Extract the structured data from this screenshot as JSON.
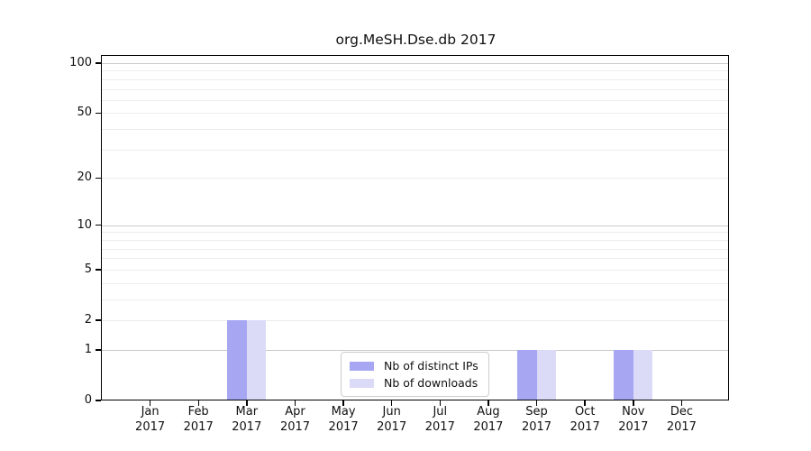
{
  "figure": {
    "title": "org.MeSH.Dse.db 2017"
  },
  "chart_data": {
    "type": "bar",
    "title": "org.MeSH.Dse.db 2017",
    "x_categories": [
      "Jan",
      "Feb",
      "Mar",
      "Apr",
      "May",
      "Jun",
      "Jul",
      "Aug",
      "Sep",
      "Oct",
      "Nov",
      "Dec"
    ],
    "x_year": "2017",
    "series": [
      {
        "name": "Nb of distinct IPs",
        "color": "#a6a6f2",
        "values": [
          0,
          0,
          2,
          0,
          0,
          0,
          0,
          0,
          1,
          0,
          1,
          0
        ]
      },
      {
        "name": "Nb of downloads",
        "color": "#dbdbf8",
        "values": [
          0,
          0,
          2,
          0,
          0,
          0,
          0,
          0,
          1,
          0,
          1,
          0
        ]
      }
    ],
    "yscale": "log1p",
    "ylim": [
      0,
      110
    ],
    "ytick_values": [
      0,
      1,
      2,
      5,
      10,
      20,
      50,
      100
    ],
    "ytick_labels": [
      "0",
      "1",
      "2",
      "5",
      "10",
      "20",
      "50",
      "100"
    ],
    "gridline_values": [
      1,
      2,
      3,
      4,
      5,
      6,
      7,
      8,
      9,
      10,
      20,
      30,
      40,
      50,
      60,
      70,
      80,
      90,
      100
    ],
    "decade_values": [
      1,
      10,
      100
    ],
    "grid": true,
    "legend": {
      "position": "bottom-center",
      "items": [
        "Nb of distinct IPs",
        "Nb of downloads"
      ]
    },
    "colors": {
      "grid_minor": "#ececec",
      "grid_decade": "#cbcbcb",
      "spine": "#000000",
      "text": "#111111"
    }
  }
}
